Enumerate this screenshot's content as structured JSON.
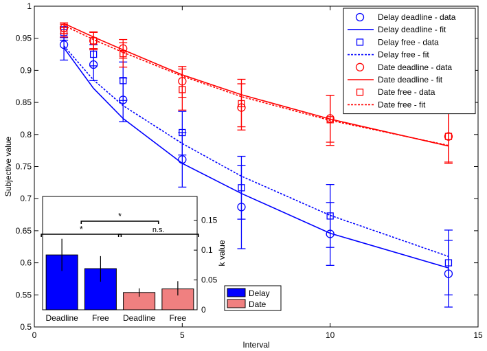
{
  "colors": {
    "delay": "#0000ff",
    "date": "#ff0000",
    "delay_bar": "#0000ff",
    "date_bar": "#f08080"
  },
  "chart_data": [
    {
      "type": "line",
      "xlabel": "Interval",
      "ylabel": "Subjective value",
      "xlim": [
        0,
        15
      ],
      "ylim": [
        0.5,
        1
      ],
      "xticks": [
        "0",
        "5",
        "10",
        "15"
      ],
      "yticks": [
        "0.5",
        "0.55",
        "0.6",
        "0.65",
        "0.7",
        "0.75",
        "0.8",
        "0.85",
        "0.9",
        "0.95",
        "1"
      ],
      "grid": false,
      "legend_position": "top-right",
      "x": [
        1,
        2,
        3,
        5,
        7,
        10,
        14
      ],
      "series": [
        {
          "name": "Delay deadline - data",
          "kind": "data",
          "marker": "circle",
          "color": "#0000ff",
          "values": [
            0.94,
            0.909,
            0.854,
            0.761,
            0.687,
            0.645,
            0.583
          ],
          "err_low": [
            0.916,
            0.884,
            0.82,
            0.718,
            0.622,
            0.596,
            0.531
          ],
          "err_high": [
            0.951,
            0.932,
            0.888,
            0.803,
            0.752,
            0.694,
            0.635
          ]
        },
        {
          "name": "Delay deadline - fit",
          "kind": "fit",
          "dash": "solid",
          "color": "#0000ff",
          "values": [
            0.935,
            0.872,
            0.825,
            0.755,
            0.708,
            0.646,
            0.592
          ]
        },
        {
          "name": "Delay free - data",
          "kind": "data",
          "marker": "square",
          "color": "#0000ff",
          "values": [
            0.959,
            0.925,
            0.884,
            0.803,
            0.717,
            0.673,
            0.6
          ],
          "err_low": [
            0.947,
            0.907,
            0.853,
            0.768,
            0.668,
            0.624,
            0.55
          ],
          "err_high": [
            0.968,
            0.94,
            0.913,
            0.836,
            0.766,
            0.722,
            0.651
          ]
        },
        {
          "name": "Delay free - fit",
          "kind": "fit",
          "dash": "dotted",
          "color": "#0000ff",
          "values": [
            0.938,
            0.885,
            0.845,
            0.786,
            0.735,
            0.674,
            0.61
          ]
        },
        {
          "name": "Date deadline - data",
          "kind": "data",
          "marker": "circle",
          "color": "#ff0000",
          "values": [
            0.966,
            0.946,
            0.934,
            0.883,
            0.842,
            0.825,
            0.797
          ],
          "err_low": [
            0.957,
            0.934,
            0.919,
            0.858,
            0.812,
            0.788,
            0.755
          ],
          "err_high": [
            0.974,
            0.96,
            0.948,
            0.906,
            0.879,
            0.861,
            0.838
          ]
        },
        {
          "name": "Date deadline - fit",
          "kind": "fit",
          "dash": "solid",
          "color": "#ff0000",
          "values": [
            0.973,
            0.952,
            0.932,
            0.893,
            0.862,
            0.824,
            0.782
          ]
        },
        {
          "name": "Date free - data",
          "kind": "data",
          "marker": "square",
          "color": "#ff0000",
          "values": [
            0.962,
            0.946,
            0.926,
            0.87,
            0.848,
            0.823,
            0.797
          ],
          "err_low": [
            0.952,
            0.932,
            0.905,
            0.838,
            0.807,
            0.783,
            0.757
          ],
          "err_high": [
            0.972,
            0.959,
            0.943,
            0.902,
            0.886,
            0.861,
            0.836
          ]
        },
        {
          "name": "Date free - fit",
          "kind": "fit",
          "dash": "dotted",
          "color": "#ff0000",
          "values": [
            0.97,
            0.948,
            0.928,
            0.891,
            0.859,
            0.822,
            0.783
          ]
        }
      ]
    },
    {
      "type": "bar",
      "ylabel": "k value",
      "ylim": [
        0,
        0.19
      ],
      "yticks": [
        0,
        0.05,
        0.1,
        0.15
      ],
      "ytick_labels": [
        "0",
        "0.05",
        "0.1",
        "0.15"
      ],
      "categories": [
        "Deadline",
        "Free",
        "Deadline",
        "Free"
      ],
      "groups": [
        "Delay",
        "Delay",
        "Date",
        "Date"
      ],
      "values": [
        0.092,
        0.069,
        0.029,
        0.035
      ],
      "err_low": [
        0.065,
        0.047,
        0.022,
        0.024
      ],
      "err_high": [
        0.119,
        0.09,
        0.036,
        0.048
      ],
      "legend": [
        {
          "name": "Delay",
          "color": "#0000ff"
        },
        {
          "name": "Date",
          "color": "#f08080"
        }
      ],
      "legend_position": "lower-right outside",
      "annotations": [
        {
          "text": "*",
          "from": 0,
          "to": 1
        },
        {
          "text": "*",
          "from": 0.5,
          "to": 2.5
        },
        {
          "text": "n.s.",
          "from": 2,
          "to": 3
        }
      ]
    }
  ]
}
